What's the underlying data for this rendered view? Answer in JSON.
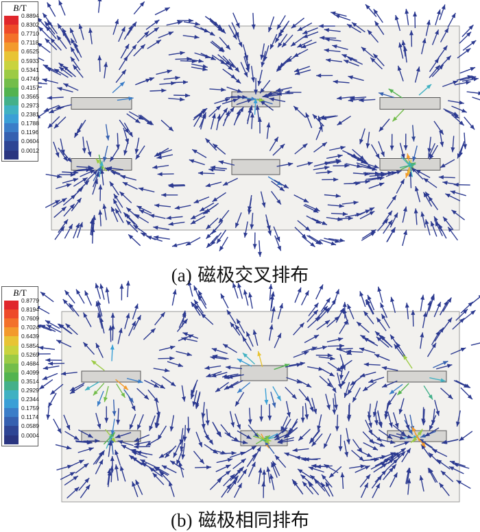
{
  "panels": [
    {
      "caption_label": "(a)",
      "caption_text": "磁极交叉排布",
      "legend_title_var": "B",
      "legend_title_unit": "/T",
      "legend_ticks": [
        "0.8894",
        "0.8302",
        "0.7710",
        "0.7118",
        "0.6525",
        "0.5933",
        "0.5341",
        "0.4749",
        "0.4157",
        "0.3565",
        "0.2973",
        "0.2381",
        "0.1788",
        "0.1196",
        "0.0604",
        "0.0012"
      ],
      "poles": "crossed"
    },
    {
      "caption_label": "(b)",
      "caption_text": "磁极相同排布",
      "legend_title_var": "B",
      "legend_title_unit": "/T",
      "legend_ticks": [
        "0.8779",
        "0.8194",
        "0.7609",
        "0.7024",
        "0.6439",
        "0.5854",
        "0.5269",
        "0.4684",
        "0.4099",
        "0.3514",
        "0.2929",
        "0.2344",
        "0.1759",
        "0.1174",
        "0.0589",
        "0.0004"
      ],
      "poles": "same"
    }
  ],
  "colors": {
    "scale": [
      "#e0262c",
      "#ee4a2a",
      "#f3712a",
      "#f39a2c",
      "#e8c435",
      "#c9d33e",
      "#9ccb45",
      "#73bd4a",
      "#52b34f",
      "#43b08a",
      "#3fb1c2",
      "#3a9fd6",
      "#3a7dc8",
      "#3560b0",
      "#2e4594",
      "#2a3580"
    ],
    "region_fill": "#f2f1ee",
    "region_stroke": "#9a9a9a",
    "magnet_fill": "#d6d5d2",
    "magnet_stroke": "#555555",
    "arrow_default": "#2b3990"
  }
}
